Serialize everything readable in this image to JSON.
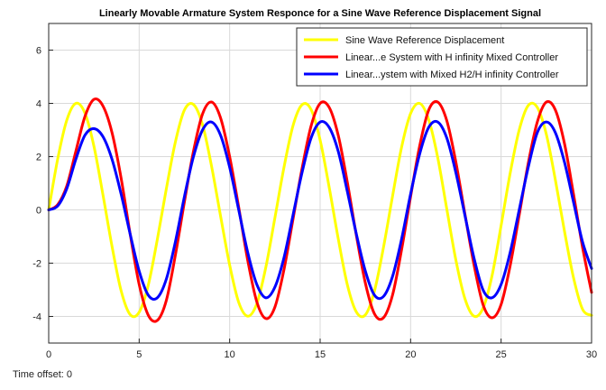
{
  "chart_data": {
    "type": "line",
    "title": "Linearly Movable Armature System Responce for a Sine Wave Reference Displacement Signal",
    "xlabel": "",
    "ylabel": "",
    "xlim": [
      0,
      30
    ],
    "ylim": [
      -5,
      7
    ],
    "xticks": [
      0,
      5,
      10,
      15,
      20,
      25,
      30
    ],
    "yticks": [
      -4,
      -2,
      0,
      2,
      4,
      6
    ],
    "grid": true,
    "legend_position": "top-right",
    "series": [
      {
        "name": "Sine Wave Reference Displacement",
        "color": "#ffff00",
        "x": [
          0,
          0.5,
          1,
          1.5,
          2,
          2.5,
          3,
          3.5,
          4,
          4.5,
          5,
          5.5,
          6,
          6.5,
          7,
          7.5,
          8,
          8.5,
          9,
          9.5,
          10,
          10.5,
          11,
          11.5,
          12,
          12.5,
          13,
          13.5,
          14,
          14.5,
          15,
          15.5,
          16,
          16.5,
          17,
          17.5,
          18,
          18.5,
          19,
          19.5,
          20,
          20.5,
          21,
          21.5,
          22,
          22.5,
          23,
          23.5,
          24,
          24.5,
          25,
          25.5,
          26,
          26.5,
          27,
          27.5,
          28,
          28.5,
          29,
          29.5,
          30
        ],
        "y": [
          0,
          1.92,
          3.37,
          4.0,
          3.64,
          2.39,
          0.56,
          -1.37,
          -3.03,
          -3.93,
          -3.84,
          -2.83,
          -1.12,
          0.79,
          2.55,
          3.75,
          3.96,
          3.2,
          1.64,
          -0.24,
          -2.07,
          -3.47,
          -3.99,
          -3.52,
          -2.15,
          -0.3,
          1.59,
          3.16,
          3.95,
          3.77,
          2.62,
          0.85,
          -1.08,
          -2.8,
          -3.83,
          -3.94,
          -3.05,
          -1.41,
          0.51,
          2.35,
          3.62,
          4.0,
          3.39,
          1.96,
          0.03,
          -1.88,
          -3.33,
          -3.99,
          -3.69,
          -2.47,
          -0.59,
          1.37,
          3.0,
          3.92,
          3.85,
          2.84,
          1.12,
          -0.79,
          -2.54,
          -3.73,
          -3.96
        ]
      },
      {
        "name": "Linear...e System with H infinity Mixed Controller",
        "color": "#ff0000",
        "x": [
          0,
          0.5,
          1,
          1.5,
          2,
          2.5,
          3,
          3.5,
          4,
          4.5,
          5,
          5.5,
          6,
          6.5,
          7,
          7.5,
          8,
          8.5,
          9,
          9.5,
          10,
          10.5,
          11,
          11.5,
          12,
          12.5,
          13,
          13.5,
          14,
          14.5,
          15,
          15.5,
          16,
          16.5,
          17,
          17.5,
          18,
          18.5,
          19,
          19.5,
          20,
          20.5,
          21,
          21.5,
          22,
          22.5,
          23,
          23.5,
          24,
          24.5,
          25,
          25.5,
          26,
          26.5,
          27,
          27.5,
          28,
          28.5,
          29,
          29.5,
          30
        ],
        "y": [
          0,
          0.2,
          0.9,
          2.2,
          3.5,
          4.15,
          3.9,
          2.9,
          1.2,
          -0.9,
          -2.8,
          -3.95,
          -4.15,
          -3.4,
          -1.7,
          0.3,
          2.2,
          3.6,
          4.05,
          3.45,
          2.0,
          0.1,
          -1.9,
          -3.45,
          -4.08,
          -3.65,
          -2.25,
          -0.35,
          1.55,
          3.15,
          4.0,
          3.85,
          2.8,
          1.05,
          -0.95,
          -2.75,
          -3.9,
          -4.05,
          -3.2,
          -1.5,
          0.5,
          2.4,
          3.75,
          4.05,
          3.35,
          1.8,
          -0.15,
          -2.05,
          -3.55,
          -4.05,
          -3.55,
          -2.1,
          -0.2,
          1.75,
          3.3,
          4.05,
          3.75,
          2.5,
          0.6,
          -1.4,
          -3.1
        ]
      },
      {
        "name": "Linear...ystem with Mixed H2/H infinity Controller",
        "color": "#0000ff",
        "x": [
          0,
          0.5,
          1,
          1.5,
          2,
          2.5,
          3,
          3.5,
          4,
          4.5,
          5,
          5.5,
          6,
          6.5,
          7,
          7.5,
          8,
          8.5,
          9,
          9.5,
          10,
          10.5,
          11,
          11.5,
          12,
          12.5,
          13,
          13.5,
          14,
          14.5,
          15,
          15.5,
          16,
          16.5,
          17,
          17.5,
          18,
          18.5,
          19,
          19.5,
          20,
          20.5,
          21,
          21.5,
          22,
          22.5,
          23,
          23.5,
          24,
          24.5,
          25,
          25.5,
          26,
          26.5,
          27,
          27.5,
          28,
          28.5,
          29,
          29.5,
          30
        ],
        "y": [
          0,
          0.15,
          0.8,
          1.9,
          2.8,
          3.05,
          2.75,
          1.9,
          0.6,
          -0.9,
          -2.3,
          -3.2,
          -3.3,
          -2.6,
          -1.2,
          0.5,
          2.0,
          3.0,
          3.3,
          2.8,
          1.6,
          0.0,
          -1.6,
          -2.8,
          -3.3,
          -2.9,
          -1.8,
          -0.2,
          1.4,
          2.7,
          3.3,
          3.1,
          2.2,
          0.7,
          -0.9,
          -2.3,
          -3.2,
          -3.25,
          -2.5,
          -1.1,
          0.6,
          2.1,
          3.1,
          3.3,
          2.7,
          1.4,
          -0.2,
          -1.8,
          -3.0,
          -3.3,
          -2.8,
          -1.6,
          0.0,
          1.6,
          2.9,
          3.3,
          2.9,
          1.8,
          0.3,
          -1.2,
          -2.2
        ]
      }
    ]
  },
  "footer": {
    "time_offset_label": "Time offset:",
    "time_offset_value": "0"
  }
}
